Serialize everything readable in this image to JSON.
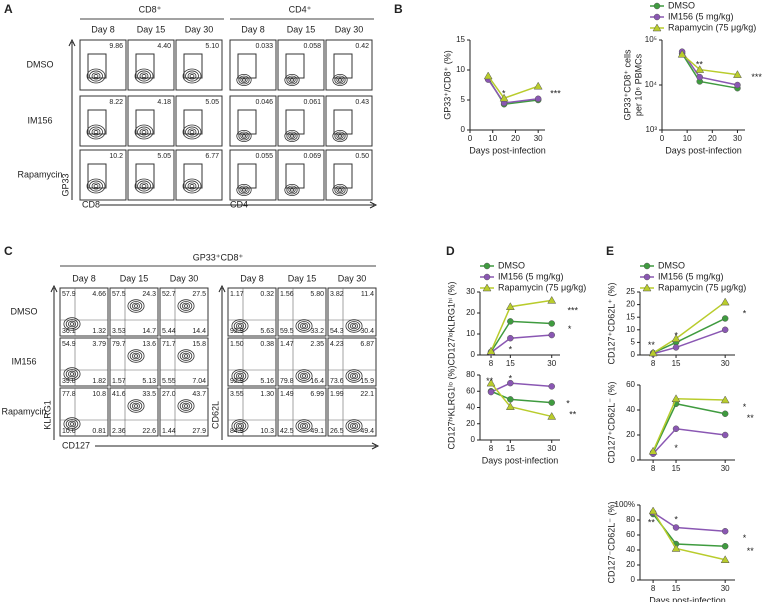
{
  "panel_labels": [
    "A",
    "B",
    "C",
    "D",
    "E"
  ],
  "flow_a": {
    "groups": [
      "CD8⁺",
      "CD4⁺"
    ],
    "days": [
      "Day 8",
      "Day 15",
      "Day 30"
    ],
    "rows": [
      "DMSO",
      "IM156",
      "Rapamycin"
    ],
    "values": [
      [
        "9.86",
        "4.40",
        "5.10",
        "0.033",
        "0.058",
        "0.42"
      ],
      [
        "8.22",
        "4.18",
        "5.05",
        "0.046",
        "0.061",
        "0.43"
      ],
      [
        "10.2",
        "5.05",
        "6.77",
        "0.055",
        "0.069",
        "0.50"
      ]
    ],
    "y_label": "GP33",
    "x_labels": [
      "CD8",
      "CD4"
    ]
  },
  "flow_c": {
    "title": "GP33⁺CD8⁺",
    "days": [
      "Day 8",
      "Day 15",
      "Day 30"
    ],
    "rows": [
      "DMSO",
      "IM156",
      "Rapamycin"
    ],
    "quadrants": [
      [
        [
          "57.9",
          "4.66",
          "36.1",
          "1.32"
        ],
        [
          "57.5",
          "24.3",
          "3.53",
          "14.7"
        ],
        [
          "52.7",
          "27.5",
          "5.44",
          "14.4"
        ],
        [
          "1.17",
          "0.32",
          "92.9",
          "5.63"
        ],
        [
          "1.56",
          "5.80",
          "59.5",
          "33.2"
        ],
        [
          "3.82",
          "11.4",
          "54.3",
          "30.4"
        ]
      ],
      [
        [
          "54.9",
          "3.79",
          "39.8",
          "1.82"
        ],
        [
          "79.7",
          "13.6",
          "1.57",
          "5.13"
        ],
        [
          "71.7",
          "15.8",
          "5.55",
          "7.04"
        ],
        [
          "1.50",
          "0.38",
          "92.9",
          "5.16"
        ],
        [
          "1.47",
          "2.35",
          "79.8",
          "16.4"
        ],
        [
          "4.23",
          "6.87",
          "73.6",
          "15.9"
        ]
      ],
      [
        [
          "77.8",
          "10.8",
          "10.6",
          "0.81"
        ],
        [
          "41.6",
          "33.5",
          "2.36",
          "22.6"
        ],
        [
          "27.0",
          "43.7",
          "1.44",
          "27.9"
        ],
        [
          "3.55",
          "1.30",
          "84.9",
          "10.3"
        ],
        [
          "1.49",
          "6.99",
          "42.5",
          "49.1"
        ],
        [
          "1.99",
          "22.1",
          "26.5",
          "49.4"
        ]
      ]
    ],
    "y_labels": [
      "KLRG1",
      "CD62L"
    ],
    "x_label": "CD127"
  },
  "chart_data": [
    {
      "type": "line",
      "ylabel": "GP33⁺/CD8⁺ (%)",
      "xlabel": "Days post-infection",
      "x": [
        8,
        15,
        30
      ],
      "xlim": [
        0,
        33
      ],
      "xticks": [
        0,
        10,
        20,
        30
      ],
      "ylim": [
        0,
        15
      ],
      "yticks": [
        0,
        5,
        10,
        15
      ],
      "legend": true,
      "annotations": [
        "*",
        "***"
      ],
      "series": [
        {
          "name": "DMSO",
          "color": "#3f9b3f",
          "marker": "circle",
          "values": [
            8.6,
            4.3,
            5.0
          ]
        },
        {
          "name": "IM156 (5 mg/kg)",
          "color": "#8a57b3",
          "marker": "circle",
          "values": [
            8.4,
            4.5,
            5.2
          ]
        },
        {
          "name": "Rapamycin (75 μg/kg)",
          "color": "#b9cc2c",
          "marker": "triangle",
          "values": [
            9.0,
            5.3,
            7.3
          ]
        }
      ]
    },
    {
      "type": "line",
      "ylabel": [
        "GP33⁺CD8⁺ cells",
        "per 10⁶ PBMCs"
      ],
      "xlabel": "Days post-infection",
      "x": [
        8,
        15,
        30
      ],
      "xlim": [
        0,
        33
      ],
      "xticks": [
        0,
        10,
        20,
        30
      ],
      "ylim": [
        1000,
        100000
      ],
      "log": true,
      "yticks": [
        {
          "value": 1000,
          "label": "10³"
        },
        {
          "value": 10000,
          "label": "10⁴"
        },
        {
          "value": 100000,
          "label": "10⁵"
        }
      ],
      "annotations": [
        "**",
        "***"
      ],
      "series": [
        {
          "name": "DMSO",
          "color": "#3f9b3f",
          "marker": "circle",
          "values": [
            50000,
            12000,
            8500
          ]
        },
        {
          "name": "IM156 (5 mg/kg)",
          "color": "#8a57b3",
          "marker": "circle",
          "values": [
            55000,
            15000,
            10000
          ]
        },
        {
          "name": "Rapamycin (75 μg/kg)",
          "color": "#b9cc2c",
          "marker": "triangle",
          "values": [
            48000,
            22000,
            17000
          ]
        }
      ]
    },
    {
      "type": "line",
      "ylabel": "CD127ˡᵒKLRG1ʰⁱ (%)",
      "x": [
        8,
        15,
        30
      ],
      "xlim": [
        4,
        33
      ],
      "xticks": [
        8,
        15,
        30
      ],
      "ylim": [
        0,
        30
      ],
      "yticks": [
        0,
        10,
        20,
        30
      ],
      "legend": true,
      "annotations": [
        "***",
        "*",
        "*"
      ],
      "series": [
        {
          "name": "DMSO",
          "color": "#3f9b3f",
          "marker": "circle",
          "values": [
            1.5,
            16,
            15
          ]
        },
        {
          "name": "IM156 (5 mg/kg)",
          "color": "#8a57b3",
          "marker": "circle",
          "values": [
            1.2,
            8,
            9.5
          ]
        },
        {
          "name": "Rapamycin (75 μg/kg)",
          "color": "#b9cc2c",
          "marker": "triangle",
          "values": [
            1.8,
            23,
            26
          ]
        }
      ]
    },
    {
      "type": "line",
      "ylabel": "CD127ʰⁱKLRG1ˡᵒ (%)",
      "xlabel": "Days post-infection",
      "x": [
        8,
        15,
        30
      ],
      "xlim": [
        4,
        33
      ],
      "xticks": [
        8,
        15,
        30
      ],
      "ylim": [
        0,
        80
      ],
      "yticks": [
        0,
        20,
        40,
        60,
        80
      ],
      "annotations": [
        "**",
        "*",
        "*",
        "**"
      ],
      "series": [
        {
          "name": "DMSO",
          "color": "#3f9b3f",
          "marker": "circle",
          "values": [
            60,
            50,
            46
          ]
        },
        {
          "name": "IM156 (5 mg/kg)",
          "color": "#8a57b3",
          "marker": "circle",
          "values": [
            59,
            70,
            66
          ]
        },
        {
          "name": "Rapamycin (75 μg/kg)",
          "color": "#b9cc2c",
          "marker": "triangle",
          "values": [
            70,
            41,
            29
          ]
        }
      ]
    },
    {
      "type": "line",
      "ylabel": "CD127⁺CD62L⁺ (%)",
      "x": [
        8,
        15,
        30
      ],
      "xlim": [
        4,
        33
      ],
      "xticks": [
        8,
        15,
        30
      ],
      "ylim": [
        0,
        25
      ],
      "yticks": [
        0,
        5,
        10,
        15,
        20,
        25
      ],
      "legend": true,
      "annotations": [
        "**",
        "*",
        "*"
      ],
      "series": [
        {
          "name": "DMSO",
          "color": "#3f9b3f",
          "marker": "circle",
          "values": [
            0.8,
            5,
            14.5
          ]
        },
        {
          "name": "IM156 (5 mg/kg)",
          "color": "#8a57b3",
          "marker": "circle",
          "values": [
            0.5,
            3,
            10
          ]
        },
        {
          "name": "Rapamycin (75 μg/kg)",
          "color": "#b9cc2c",
          "marker": "triangle",
          "values": [
            0.8,
            6.5,
            21
          ]
        }
      ]
    },
    {
      "type": "line",
      "ylabel": "CD127⁺CD62L⁻ (%)",
      "x": [
        8,
        15,
        30
      ],
      "xlim": [
        4,
        33
      ],
      "xticks": [
        8,
        15,
        30
      ],
      "ylim": [
        0,
        60
      ],
      "yticks": [
        0,
        20,
        40,
        60
      ],
      "annotations": [
        "*",
        "*",
        "**"
      ],
      "series": [
        {
          "name": "DMSO",
          "color": "#3f9b3f",
          "marker": "circle",
          "values": [
            6,
            45,
            37
          ]
        },
        {
          "name": "IM156 (5 mg/kg)",
          "color": "#8a57b3",
          "marker": "circle",
          "values": [
            5,
            25,
            20
          ]
        },
        {
          "name": "Rapamycin (75 μg/kg)",
          "color": "#b9cc2c",
          "marker": "triangle",
          "values": [
            7,
            49,
            48
          ]
        }
      ]
    },
    {
      "type": "line",
      "ylabel": "CD127⁻CD62L⁻ (%)",
      "xlabel": "Days post-infection",
      "x": [
        8,
        15,
        30
      ],
      "xlim": [
        4,
        33
      ],
      "xticks": [
        8,
        15,
        30
      ],
      "ylim": [
        0,
        100
      ],
      "yticks": [
        0,
        20,
        40,
        60,
        80,
        {
          "value": 100,
          "label": "100%"
        }
      ],
      "annotations": [
        "**",
        "*",
        "*",
        "**"
      ],
      "series": [
        {
          "name": "DMSO",
          "color": "#3f9b3f",
          "marker": "circle",
          "values": [
            88,
            48,
            45
          ]
        },
        {
          "name": "IM156 (5 mg/kg)",
          "color": "#8a57b3",
          "marker": "circle",
          "values": [
            90,
            70,
            65
          ]
        },
        {
          "name": "Rapamycin (75 μg/kg)",
          "color": "#b9cc2c",
          "marker": "triangle",
          "values": [
            92,
            42,
            27
          ]
        }
      ]
    }
  ]
}
